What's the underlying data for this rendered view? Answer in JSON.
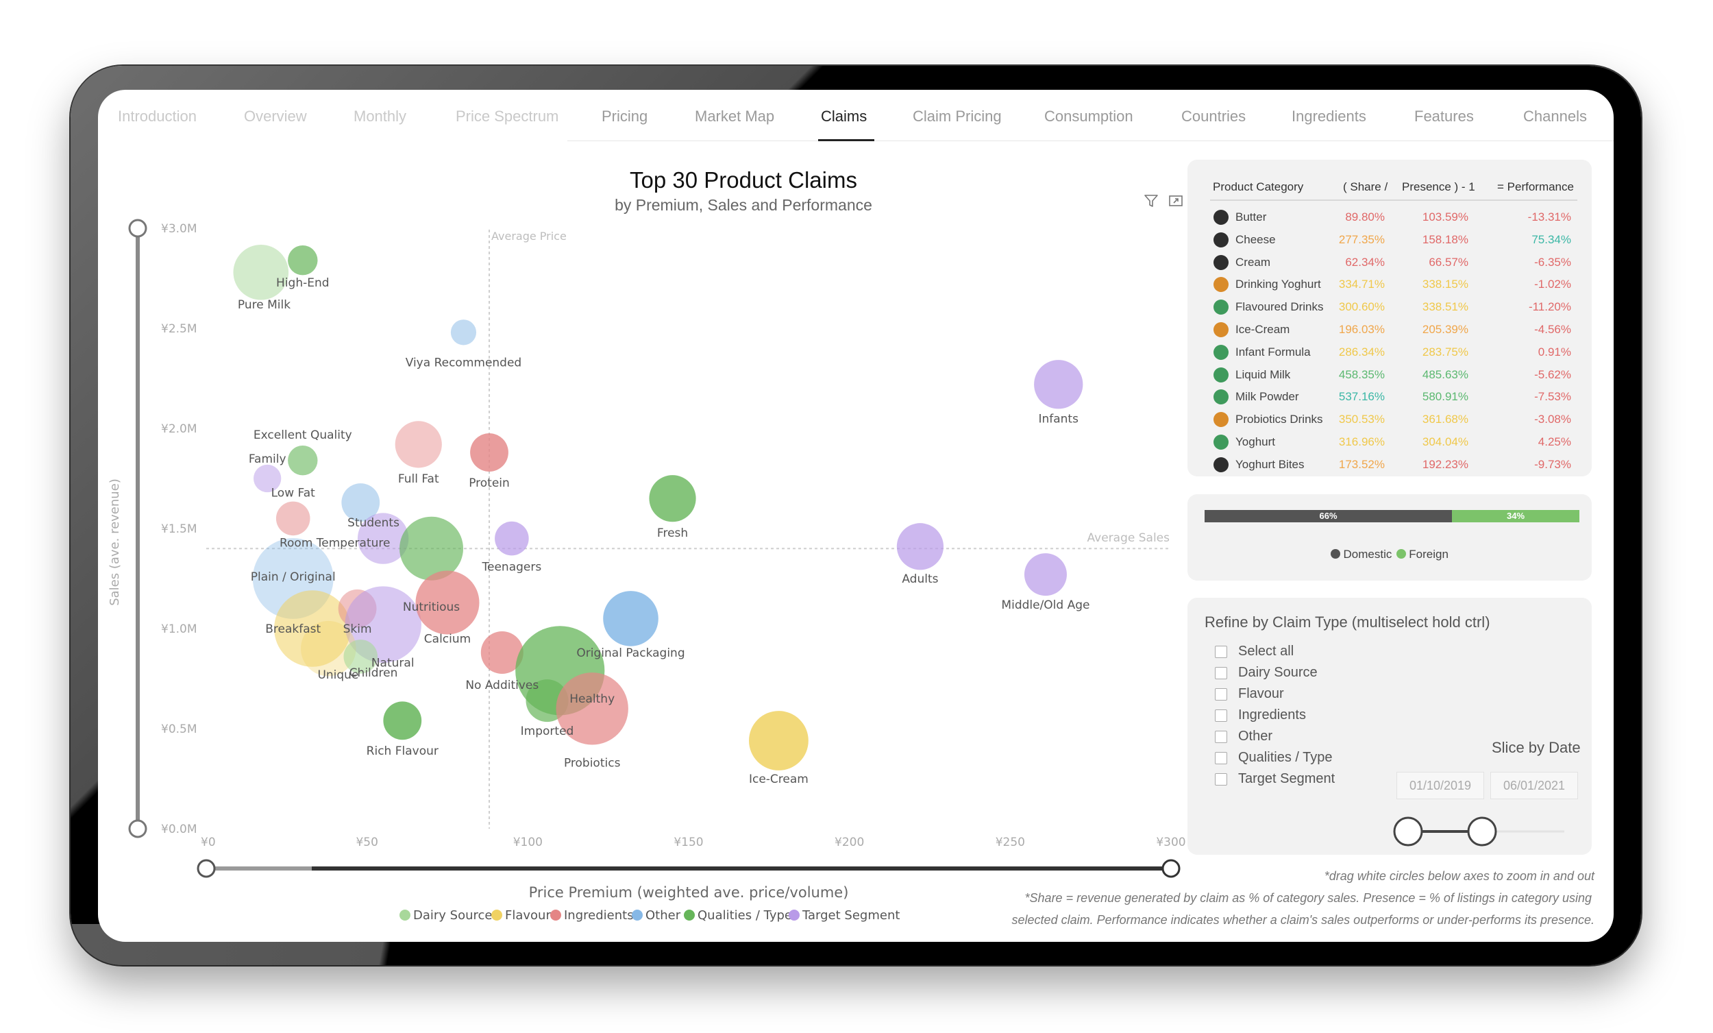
{
  "tabs": [
    {
      "label": "Introduction",
      "state": "faint"
    },
    {
      "label": "Overview",
      "state": "faint"
    },
    {
      "label": "Monthly",
      "state": "faint"
    },
    {
      "label": "Price Spectrum",
      "state": "faint"
    },
    {
      "label": "Pricing",
      "state": "normal"
    },
    {
      "label": "Market Map",
      "state": "normal"
    },
    {
      "label": "Claims",
      "state": "active"
    },
    {
      "label": "Claim Pricing",
      "state": "normal"
    },
    {
      "label": "Consumption",
      "state": "normal"
    },
    {
      "label": "Countries",
      "state": "normal"
    },
    {
      "label": "Ingredients",
      "state": "normal"
    },
    {
      "label": "Features",
      "state": "normal"
    },
    {
      "label": "Channels",
      "state": "normal"
    }
  ],
  "chart": {
    "title": "Top 30 Product Claims",
    "subtitle": "by Premium, Sales and Performance",
    "filter_icon": "filter-icon",
    "focus_icon": "focus-mode-icon"
  },
  "chart_data": {
    "type": "scatter",
    "title": "Top 30 Product Claims",
    "subtitle": "by Premium, Sales and Performance",
    "xlabel": "Price Premium (weighted ave. price/volume)",
    "ylabel": "Sales (ave. revenue)",
    "xlim": [
      0,
      300
    ],
    "ylim": [
      0,
      3.0
    ],
    "x_ticks": [
      "¥0",
      "¥50",
      "¥100",
      "¥150",
      "¥200",
      "¥250",
      "¥300"
    ],
    "y_ticks": [
      "¥0.0M",
      "¥0.5M",
      "¥1.0M",
      "¥1.5M",
      "¥2.0M",
      "¥2.5M",
      "¥3.0M"
    ],
    "reference_lines": [
      {
        "axis": "x",
        "value": 88,
        "label": "Average Price"
      },
      {
        "axis": "y",
        "value": 1.4,
        "label": "Average Sales"
      }
    ],
    "legend_position": "bottom",
    "grid": false,
    "series_colors": {
      "Dairy Source": "#a8d89a",
      "Flavour": "#f0d263",
      "Ingredients": "#e48585",
      "Other": "#86b8e6",
      "Qualities / Type": "#66b55a",
      "Target Segment": "#b89ae8"
    },
    "legend": [
      "Dairy Source",
      "Flavour",
      "Ingredients",
      "Other",
      "Qualities / Type",
      "Target Segment"
    ],
    "points": [
      {
        "name": "Pure Milk",
        "x": 17,
        "y": 2.78,
        "r": 1.3,
        "group": "Dairy Source",
        "alpha": 0.5,
        "lx": 18,
        "ly": 2.62
      },
      {
        "name": "High-End",
        "x": 30,
        "y": 2.84,
        "r": 0.7,
        "group": "Qualities / Type",
        "alpha": 0.7,
        "lx": 30,
        "ly": 2.73
      },
      {
        "name": "Viya Recommended",
        "x": 80,
        "y": 2.48,
        "r": 0.6,
        "group": "Other",
        "alpha": 0.5,
        "lx": 80,
        "ly": 2.33
      },
      {
        "name": "Excellent Quality",
        "x": 30,
        "y": 1.84,
        "r": 0.7,
        "group": "Qualities / Type",
        "alpha": 0.6,
        "lx": 30,
        "ly": 1.97
      },
      {
        "name": "Family",
        "x": 19,
        "y": 1.75,
        "r": 0.65,
        "group": "Target Segment",
        "alpha": 0.5,
        "lx": 19,
        "ly": 1.85
      },
      {
        "name": "Low Fat",
        "x": 27,
        "y": 1.55,
        "r": 0.8,
        "group": "Ingredients",
        "alpha": 0.5,
        "lx": 27,
        "ly": 1.68
      },
      {
        "name": "Full Fat",
        "x": 66,
        "y": 1.92,
        "r": 1.1,
        "group": "Ingredients",
        "alpha": 0.45,
        "lx": 66,
        "ly": 1.75
      },
      {
        "name": "Protein",
        "x": 88,
        "y": 1.88,
        "r": 0.9,
        "group": "Ingredients",
        "alpha": 0.8,
        "lx": 88,
        "ly": 1.73
      },
      {
        "name": "Students",
        "x": 48,
        "y": 1.63,
        "r": 0.9,
        "group": "Other",
        "alpha": 0.5,
        "lx": 52,
        "ly": 1.53
      },
      {
        "name": "Room Temperature",
        "x": 55,
        "y": 1.45,
        "r": 1.2,
        "group": "Target Segment",
        "alpha": 0.55,
        "lx": 40,
        "ly": 1.43
      },
      {
        "name": "Nutritious",
        "x": 70,
        "y": 1.4,
        "r": 1.5,
        "group": "Qualities / Type",
        "alpha": 0.65,
        "lx": 70,
        "ly": 1.11
      },
      {
        "name": "Teenagers",
        "x": 95,
        "y": 1.45,
        "r": 0.8,
        "group": "Target Segment",
        "alpha": 0.7,
        "lx": 95,
        "ly": 1.31
      },
      {
        "name": "Fresh",
        "x": 145,
        "y": 1.65,
        "r": 1.1,
        "group": "Qualities / Type",
        "alpha": 0.8,
        "lx": 145,
        "ly": 1.48
      },
      {
        "name": "Infants",
        "x": 265,
        "y": 2.22,
        "r": 1.15,
        "group": "Target Segment",
        "alpha": 0.7,
        "lx": 265,
        "ly": 2.05
      },
      {
        "name": "Adults",
        "x": 222,
        "y": 1.41,
        "r": 1.1,
        "group": "Target Segment",
        "alpha": 0.7,
        "lx": 222,
        "ly": 1.25
      },
      {
        "name": "Middle/Old Age",
        "x": 261,
        "y": 1.27,
        "r": 1.0,
        "group": "Target Segment",
        "alpha": 0.7,
        "lx": 261,
        "ly": 1.12
      },
      {
        "name": "Plain / Original",
        "x": 27,
        "y": 1.25,
        "r": 1.9,
        "group": "Other",
        "alpha": 0.4,
        "lx": 27,
        "ly": 1.26
      },
      {
        "name": "Breakfast",
        "x": 33,
        "y": 1.0,
        "r": 1.8,
        "group": "Flavour",
        "alpha": 0.55,
        "lx": 27,
        "ly": 1.0
      },
      {
        "name": "Skim",
        "x": 47,
        "y": 1.1,
        "r": 0.9,
        "group": "Ingredients",
        "alpha": 0.5,
        "lx": 47,
        "ly": 1.0
      },
      {
        "name": "Natural",
        "x": 55,
        "y": 1.02,
        "r": 1.8,
        "group": "Target Segment",
        "alpha": 0.55,
        "lx": 58,
        "ly": 0.83
      },
      {
        "name": "Unique",
        "x": 38,
        "y": 0.9,
        "r": 1.3,
        "group": "Flavour",
        "alpha": 0.35,
        "lx": 41,
        "ly": 0.77
      },
      {
        "name": "Children",
        "x": 48,
        "y": 0.86,
        "r": 0.8,
        "group": "Dairy Source",
        "alpha": 0.6,
        "lx": 52,
        "ly": 0.78
      },
      {
        "name": "Calcium",
        "x": 75,
        "y": 1.13,
        "r": 1.5,
        "group": "Ingredients",
        "alpha": 0.75,
        "lx": 75,
        "ly": 0.95
      },
      {
        "name": "No Additives",
        "x": 92,
        "y": 0.88,
        "r": 1.0,
        "group": "Ingredients",
        "alpha": 0.75,
        "lx": 92,
        "ly": 0.72
      },
      {
        "name": "Original Packaging",
        "x": 132,
        "y": 1.05,
        "r": 1.3,
        "group": "Other",
        "alpha": 0.85,
        "lx": 132,
        "ly": 0.88
      },
      {
        "name": "Healthy",
        "x": 110,
        "y": 0.79,
        "r": 2.1,
        "group": "Qualities / Type",
        "alpha": 0.75,
        "lx": 120,
        "ly": 0.65
      },
      {
        "name": "Imported",
        "x": 106,
        "y": 0.64,
        "r": 1.0,
        "group": "Qualities / Type",
        "alpha": 0.7,
        "lx": 106,
        "ly": 0.49
      },
      {
        "name": "Probiotics",
        "x": 120,
        "y": 0.6,
        "r": 1.7,
        "group": "Ingredients",
        "alpha": 0.7,
        "lx": 120,
        "ly": 0.33
      },
      {
        "name": "Rich Flavour",
        "x": 61,
        "y": 0.54,
        "r": 0.9,
        "group": "Qualities / Type",
        "alpha": 0.85,
        "lx": 61,
        "ly": 0.39
      },
      {
        "name": "Ice-Cream",
        "x": 178,
        "y": 0.44,
        "r": 1.4,
        "group": "Flavour",
        "alpha": 0.85,
        "lx": 178,
        "ly": 0.25
      }
    ]
  },
  "table": {
    "headers": [
      "Product Category",
      "( Share /",
      "Presence ) - 1",
      "= Performance"
    ],
    "rows": [
      {
        "category": "Butter",
        "dot": "#2e2e2e",
        "share": "89.80%",
        "share_c": "#e06868",
        "presence": "103.59%",
        "presence_c": "#e06868",
        "perf": "-13.31%",
        "perf_c": "#e06868"
      },
      {
        "category": "Cheese",
        "dot": "#2e2e2e",
        "share": "277.35%",
        "share_c": "#f0a64a",
        "presence": "158.18%",
        "presence_c": "#e06868",
        "perf": "75.34%",
        "perf_c": "#3bb7a5"
      },
      {
        "category": "Cream",
        "dot": "#2e2e2e",
        "share": "62.34%",
        "share_c": "#e06868",
        "presence": "66.57%",
        "presence_c": "#e06868",
        "perf": "-6.35%",
        "perf_c": "#e06868"
      },
      {
        "category": "Drinking Yoghurt",
        "dot": "#d98b2a",
        "share": "334.71%",
        "share_c": "#f0c84a",
        "presence": "338.15%",
        "presence_c": "#f0c84a",
        "perf": "-1.02%",
        "perf_c": "#e06868"
      },
      {
        "category": "Flavoured Drinks",
        "dot": "#3f9a5c",
        "share": "300.60%",
        "share_c": "#f0c84a",
        "presence": "338.51%",
        "presence_c": "#f0c84a",
        "perf": "-11.20%",
        "perf_c": "#e06868"
      },
      {
        "category": "Ice-Cream",
        "dot": "#d98b2a",
        "share": "196.03%",
        "share_c": "#f0a64a",
        "presence": "205.39%",
        "presence_c": "#f0a64a",
        "perf": "-4.56%",
        "perf_c": "#e06868"
      },
      {
        "category": "Infant Formula",
        "dot": "#3f9a5c",
        "share": "286.34%",
        "share_c": "#f0c84a",
        "presence": "283.75%",
        "presence_c": "#f0c84a",
        "perf": "0.91%",
        "perf_c": "#e06868"
      },
      {
        "category": "Liquid Milk",
        "dot": "#3f9a5c",
        "share": "458.35%",
        "share_c": "#5bb870",
        "presence": "485.63%",
        "presence_c": "#5bb870",
        "perf": "-5.62%",
        "perf_c": "#e06868"
      },
      {
        "category": "Milk Powder",
        "dot": "#3f9a5c",
        "share": "537.16%",
        "share_c": "#3bb7a5",
        "presence": "580.91%",
        "presence_c": "#5bb870",
        "perf": "-7.53%",
        "perf_c": "#e06868"
      },
      {
        "category": "Probiotics Drinks",
        "dot": "#d98b2a",
        "share": "350.53%",
        "share_c": "#f0c84a",
        "presence": "361.68%",
        "presence_c": "#f0c84a",
        "perf": "-3.08%",
        "perf_c": "#e06868"
      },
      {
        "category": "Yoghurt",
        "dot": "#3f9a5c",
        "share": "316.96%",
        "share_c": "#f0c84a",
        "presence": "304.04%",
        "presence_c": "#f0c84a",
        "perf": "4.25%",
        "perf_c": "#e06868"
      },
      {
        "category": "Yoghurt Bites",
        "dot": "#2e2e2e",
        "share": "173.52%",
        "share_c": "#f0a64a",
        "presence": "192.23%",
        "presence_c": "#e06868",
        "perf": "-9.73%",
        "perf_c": "#e06868"
      }
    ]
  },
  "origin_split": {
    "domestic": {
      "label": "Domestic",
      "value": "66%",
      "fraction": 0.66,
      "color": "#545454"
    },
    "foreign": {
      "label": "Foreign",
      "value": "34%",
      "fraction": 0.34,
      "color": "#7cc36a"
    }
  },
  "refine": {
    "title": "Refine by Claim Type (multiselect hold ctrl)",
    "options": [
      "Select all",
      "Dairy Source",
      "Flavour",
      "Ingredients",
      "Other",
      "Qualities / Type",
      "Target Segment"
    ]
  },
  "date_slicer": {
    "title": "Slice by Date",
    "start": "01/10/2019",
    "end": "06/01/2021"
  },
  "notes": {
    "zoom": "*drag white circles below axes to zoom in and out",
    "line1": "*Share = revenue generated by claim as % of category sales. Presence = % of listings in category using",
    "line2": "selected claim. Performance indicates whether a claim's sales outperforms or under-performs its presence."
  }
}
